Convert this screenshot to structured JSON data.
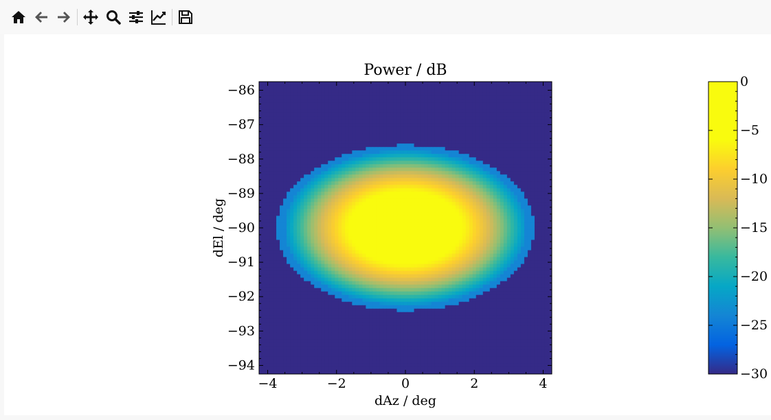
{
  "toolbar": {
    "buttons": [
      {
        "name": "home-icon",
        "label": "Home"
      },
      {
        "name": "back-icon",
        "label": "Back"
      },
      {
        "name": "forward-icon",
        "label": "Forward"
      },
      {
        "name": "pan-icon",
        "label": "Pan"
      },
      {
        "name": "zoom-icon",
        "label": "Zoom"
      },
      {
        "name": "configure-subplots-icon",
        "label": "Configure subplots"
      },
      {
        "name": "edit-axis-icon",
        "label": "Edit axis"
      },
      {
        "name": "save-icon",
        "label": "Save"
      }
    ]
  },
  "chart_data": {
    "type": "heatmap",
    "title": "Power / dB",
    "xlabel": "dAz / deg",
    "ylabel": "dEl / deg",
    "xlim": [
      -4.25,
      4.25
    ],
    "ylim": [
      -94.25,
      -85.75
    ],
    "xticks": [
      -4,
      -2,
      0,
      2,
      4
    ],
    "xtick_labels": [
      "−4",
      "−2",
      "0",
      "2",
      "4"
    ],
    "yticks": [
      -86,
      -87,
      -88,
      -89,
      -90,
      -91,
      -92,
      -93,
      -94
    ],
    "ytick_labels": [
      "−86",
      "−87",
      "−88",
      "−89",
      "−90",
      "−91",
      "−92",
      "−93",
      "−94"
    ],
    "colorbar": {
      "range": [
        -30,
        0
      ],
      "ticks": [
        0,
        -5,
        -10,
        -15,
        -20,
        -25,
        -30
      ],
      "tick_labels": [
        "0",
        "−5",
        "−10",
        "−15",
        "−20",
        "−25",
        "−30"
      ],
      "colormap": "parula"
    },
    "peak": {
      "x": 0,
      "y": -90,
      "value": 0
    },
    "main_lobe_approx": {
      "center": [
        0,
        -90
      ],
      "half_width_x_deg": 3.5,
      "half_width_y_deg": 2.25
    },
    "floor_value": -30,
    "grid": false
  }
}
